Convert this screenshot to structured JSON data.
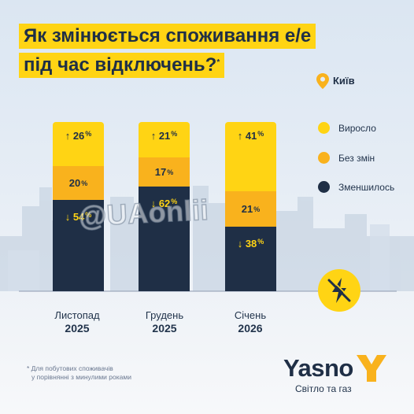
{
  "header": {
    "title_line1": "Як змінюється споживання е/е",
    "title_line2": "під час відключень?",
    "title_mark": "*"
  },
  "location": {
    "label": "Київ",
    "icon": "location-pin-icon"
  },
  "legend": [
    {
      "label": "Виросло",
      "color": "#ffd414"
    },
    {
      "label": "Без змін",
      "color": "#f9b21d"
    },
    {
      "label": "Зменшилось",
      "color": "#1f2f46"
    }
  ],
  "chart_data": {
    "type": "bar",
    "stacked": true,
    "categories": [
      {
        "month": "Листопад",
        "year": "2025"
      },
      {
        "month": "Грудень",
        "year": "2025"
      },
      {
        "month": "Січень",
        "year": "2026"
      }
    ],
    "series": [
      {
        "name": "Виросло",
        "color": "#ffd414",
        "values": [
          26,
          21,
          41
        ],
        "labels": [
          "↑ 26",
          "↑ 21",
          "↑ 41"
        ]
      },
      {
        "name": "Без змін",
        "color": "#f9b21d",
        "values": [
          20,
          17,
          21
        ],
        "labels": [
          "20",
          "17",
          "21"
        ]
      },
      {
        "name": "Зменшилось",
        "color": "#1f2f46",
        "values": [
          54,
          62,
          38
        ],
        "labels": [
          "↓ 54",
          "↓ 62",
          "↓ 38"
        ]
      }
    ],
    "unit": "%",
    "ylim": [
      0,
      100
    ]
  },
  "badge_icon": "power-off-icon",
  "watermark": "@UAonlii",
  "footnote": {
    "line1": "* Для побутових споживачів",
    "line2": "у порівнянні з минулими роками"
  },
  "brand": {
    "name": "Yasno",
    "tagline": "Світло та газ",
    "logo_color": "#f9b21d"
  }
}
